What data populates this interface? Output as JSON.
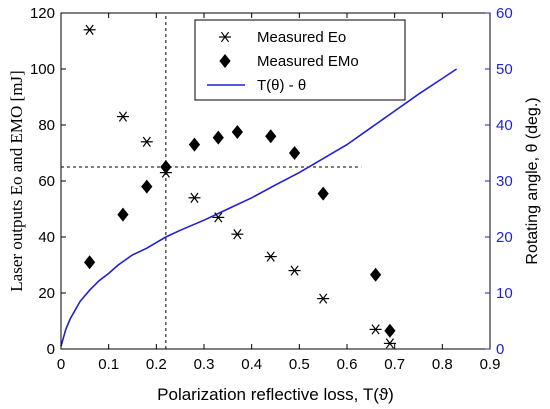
{
  "chart_data": {
    "type": "scatter",
    "xlabel": "Polarization reflective loss, T(ϑ)",
    "ylabel_left": "Laser outputs Eo and EMO [mJ]",
    "ylabel_right": "Rotating angle, θ (deg.)",
    "xlim": [
      0,
      0.9
    ],
    "ylim_left": [
      0,
      120
    ],
    "ylim_right": [
      0,
      60
    ],
    "x_ticks": [
      "0",
      "0.1",
      "0.2",
      "0.3",
      "0.4",
      "0.5",
      "0.6",
      "0.7",
      "0.8",
      "0.9"
    ],
    "y_left_ticks": [
      "0",
      "20",
      "40",
      "60",
      "80",
      "100",
      "120"
    ],
    "y_right_ticks": [
      "0",
      "10",
      "20",
      "30",
      "40",
      "50",
      "60"
    ],
    "legend_position": "top-center",
    "series": [
      {
        "name": "Measured Eo",
        "marker": "asterisk",
        "axis": "left",
        "color": "#000000",
        "points": [
          [
            0.06,
            114
          ],
          [
            0.13,
            83
          ],
          [
            0.18,
            74
          ],
          [
            0.22,
            63
          ],
          [
            0.28,
            54
          ],
          [
            0.33,
            47
          ],
          [
            0.37,
            41
          ],
          [
            0.44,
            33
          ],
          [
            0.49,
            28
          ],
          [
            0.55,
            18
          ],
          [
            0.66,
            7
          ],
          [
            0.69,
            2
          ]
        ]
      },
      {
        "name": "Measured EMo",
        "marker": "diamond",
        "axis": "left",
        "color": "#000000",
        "points": [
          [
            0.06,
            31
          ],
          [
            0.13,
            48
          ],
          [
            0.18,
            58
          ],
          [
            0.22,
            65
          ],
          [
            0.28,
            73
          ],
          [
            0.33,
            75.5
          ],
          [
            0.37,
            77.5
          ],
          [
            0.44,
            76
          ],
          [
            0.49,
            70
          ],
          [
            0.55,
            55.5
          ],
          [
            0.66,
            26.5
          ],
          [
            0.69,
            6.5
          ]
        ]
      },
      {
        "name": "T(θ) - θ",
        "marker": "line",
        "axis": "right",
        "color": "#1f1fd6",
        "points": [
          [
            0,
            0.5
          ],
          [
            0.01,
            3.5
          ],
          [
            0.02,
            5.5
          ],
          [
            0.04,
            8.5
          ],
          [
            0.06,
            10.5
          ],
          [
            0.08,
            12.2
          ],
          [
            0.1,
            13.5
          ],
          [
            0.12,
            15
          ],
          [
            0.15,
            16.8
          ],
          [
            0.18,
            18
          ],
          [
            0.2,
            19
          ],
          [
            0.22,
            20
          ],
          [
            0.25,
            21.2
          ],
          [
            0.3,
            23
          ],
          [
            0.35,
            25
          ],
          [
            0.4,
            27
          ],
          [
            0.45,
            29.3
          ],
          [
            0.5,
            31.5
          ],
          [
            0.55,
            34
          ],
          [
            0.6,
            36.5
          ],
          [
            0.65,
            39.5
          ],
          [
            0.7,
            42.5
          ],
          [
            0.75,
            45.5
          ],
          [
            0.8,
            48.3
          ],
          [
            0.83,
            50
          ]
        ]
      }
    ],
    "reference_lines": [
      {
        "orientation": "vertical",
        "x": 0.22,
        "y_from": 0,
        "y_to": 120
      },
      {
        "orientation": "horizontal",
        "y": 65,
        "x_from": 0,
        "x_to": 0.63
      }
    ]
  }
}
